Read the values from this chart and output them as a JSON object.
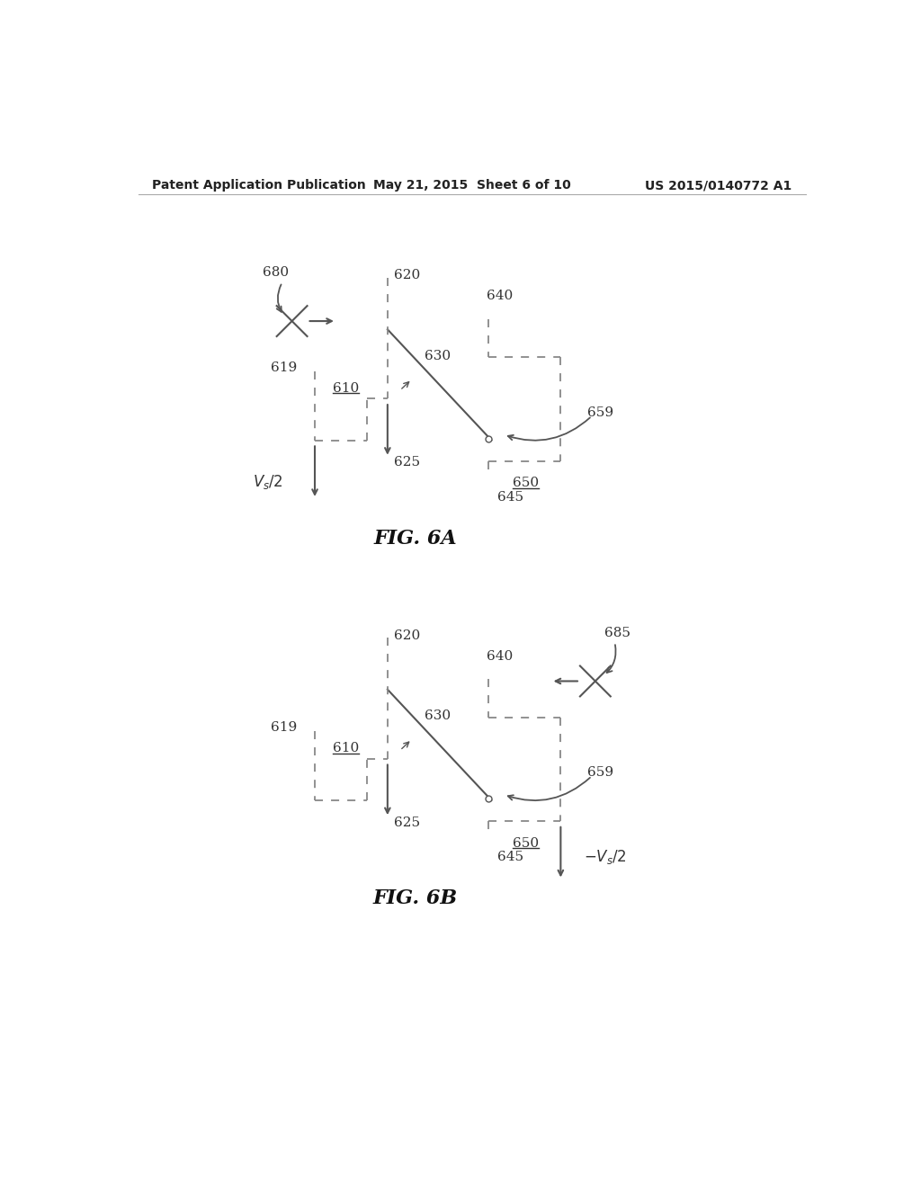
{
  "bg_color": "#ffffff",
  "header_left": "Patent Application Publication",
  "header_center": "May 21, 2015  Sheet 6 of 10",
  "header_right": "US 2015/0140772 A1",
  "fig6a_title": "FIG. 6A",
  "fig6b_title": "FIG. 6B",
  "line_color": "#555555",
  "dashed_color": "#888888",
  "label_color": "#333333"
}
